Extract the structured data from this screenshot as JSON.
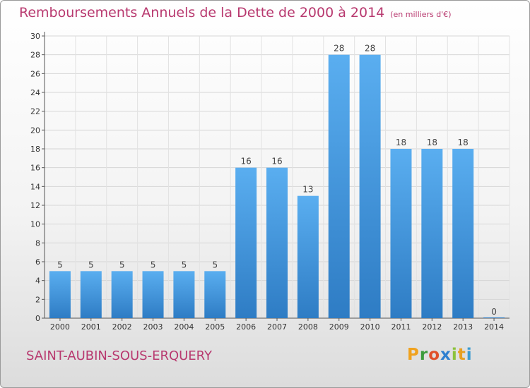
{
  "header": {
    "title": "Remboursements Annuels de la Dette de 2000 à 2014",
    "unit": "(en milliers d'€)"
  },
  "footer": {
    "commune": "SAINT-AUBIN-SOUS-ERQUERY",
    "logo_letters": [
      "P",
      "r",
      "o",
      "x",
      "i",
      "t",
      "i"
    ],
    "logo_colors": [
      "#f0a21e",
      "#3c9c3c",
      "#e0502a",
      "#2e7fd0",
      "#8cc23c",
      "#e8a020",
      "#3c9cd0"
    ]
  },
  "chart_data": {
    "type": "bar",
    "title": "Remboursements Annuels de la Dette de 2000 à 2014",
    "xlabel": "",
    "ylabel": "",
    "categories": [
      "2000",
      "2001",
      "2002",
      "2003",
      "2004",
      "2005",
      "2006",
      "2007",
      "2008",
      "2009",
      "2010",
      "2011",
      "2012",
      "2013",
      "2014"
    ],
    "values": [
      5,
      5,
      5,
      5,
      5,
      5,
      16,
      16,
      13,
      28,
      28,
      18,
      18,
      18,
      0
    ],
    "ylim": [
      0,
      30
    ],
    "yticks": [
      0,
      2,
      4,
      6,
      8,
      10,
      12,
      14,
      16,
      18,
      20,
      22,
      24,
      26,
      28,
      30
    ],
    "grid": true,
    "bar_color_top": "#5aaef0",
    "bar_color_bottom": "#2e7cc4"
  }
}
